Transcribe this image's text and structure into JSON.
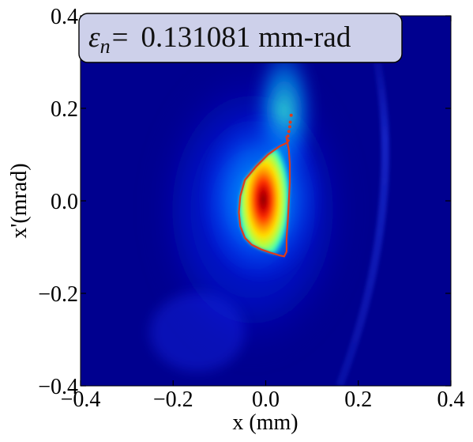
{
  "chart_data": {
    "type": "heatmap",
    "title": "",
    "annotation": {
      "symbol": "ε",
      "subscript": "n",
      "equals": "=",
      "value": "0.131081",
      "unit": "mm-rad"
    },
    "xlabel": "x (mm)",
    "ylabel": "x'(mrad)",
    "xlim": [
      -0.4,
      0.4
    ],
    "ylim": [
      -0.4,
      0.4
    ],
    "xticks": [
      -0.4,
      -0.2,
      0.0,
      0.2,
      0.4
    ],
    "yticks": [
      -0.4,
      -0.2,
      0.0,
      0.2,
      0.4
    ],
    "xtick_labels": [
      "−0.4",
      "−0.2",
      "0.0",
      "0.2",
      "0.4"
    ],
    "ytick_labels": [
      "−0.4",
      "−0.2",
      "0.0",
      "0.2",
      "0.4"
    ],
    "grid": false,
    "colormap": "jet",
    "background_color": "#00008f",
    "contour_color": "#e03a1a",
    "beam_peak": {
      "x": 0.0,
      "y": 0.0
    },
    "contour": {
      "x": [
        0.045,
        0.05,
        0.045,
        0.03,
        0.005,
        -0.02,
        -0.045,
        -0.055,
        -0.058,
        -0.055,
        -0.045,
        -0.03,
        -0.01,
        0.01,
        0.03,
        0.04,
        0.045,
        0.045,
        0.048,
        0.05,
        0.052,
        0.052,
        0.05,
        0.045
      ],
      "y": [
        0.135,
        0.13,
        0.125,
        0.118,
        0.1,
        0.075,
        0.045,
        0.01,
        -0.025,
        -0.055,
        -0.08,
        -0.095,
        -0.105,
        -0.112,
        -0.118,
        -0.12,
        -0.11,
        -0.08,
        -0.04,
        0.0,
        0.04,
        0.08,
        0.11,
        0.135
      ]
    },
    "contour_tail": {
      "x": [
        0.048,
        0.05,
        0.052,
        0.053,
        0.055
      ],
      "y": [
        0.14,
        0.15,
        0.16,
        0.17,
        0.185
      ]
    }
  }
}
